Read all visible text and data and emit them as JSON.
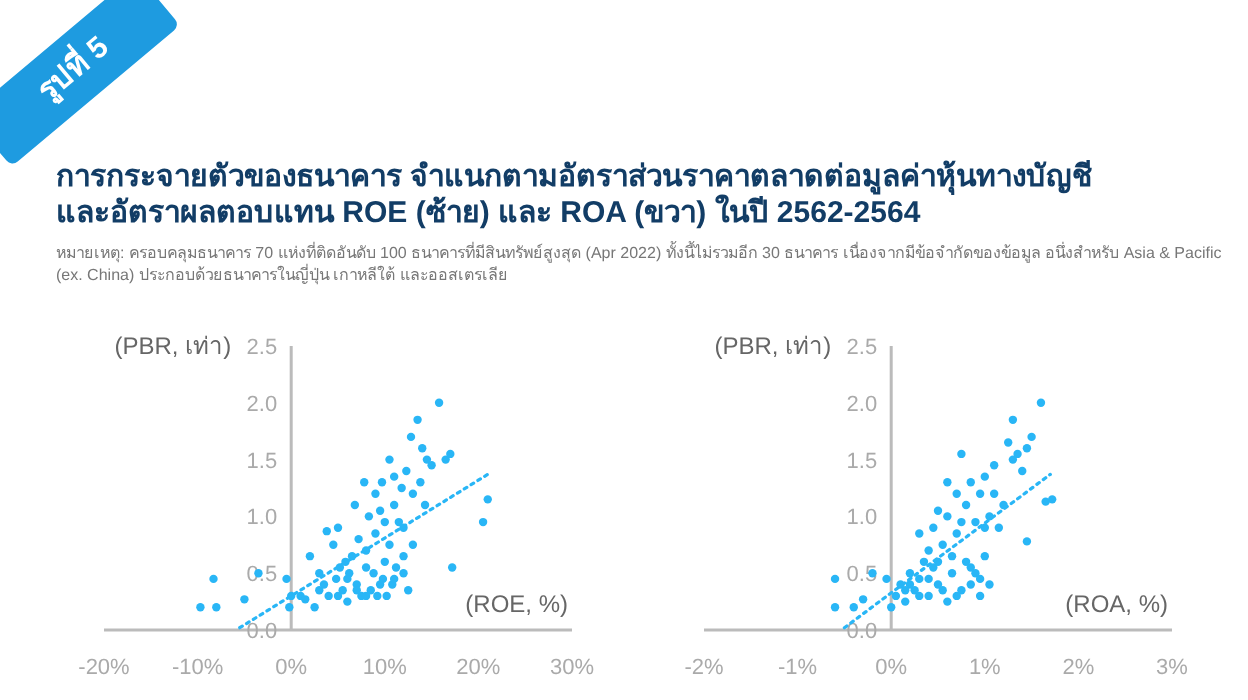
{
  "chart_data": [
    {
      "type": "scatter",
      "title": "การกระจายตัวของธนาคาร จำแนกตามอัตราส่วนราคาตลาดต่อมูลค่าหุ้นทางบัญชี และอัตราผลตอบแทน ROE (ซ้าย) และ ROA (ขวา) ในปี 2562-2564",
      "annotations": [
        "รูปที่ 5",
        "หมายเหตุ: ครอบคลุมธนาคาร 70 แห่งที่ติดอันดับ 100 ธนาคารที่มีสินทรัพย์สูงสุด (Apr 2022) ทั้งนี้ไม่รวมอีก 30 ธนาคาร เนื่องจากมีข้อจำกัดของข้อมูล อนึ่งสำหรับ Asia & Pacific (ex. China) ประกอบด้วยธนาคารในญี่ปุ่น เกาหลีใต้ และออสเตรเลีย"
      ],
      "xlabel": "(ROE, %)",
      "ylabel": "(PBR, เท่า)",
      "xlim": [
        -20,
        30
      ],
      "ylim": [
        0,
        2.5
      ],
      "xticks": [
        {
          "value": -20,
          "label": "-20%"
        },
        {
          "value": -10,
          "label": "-10%"
        },
        {
          "value": 0,
          "label": "0%"
        },
        {
          "value": 10,
          "label": "10%"
        },
        {
          "value": 20,
          "label": "20%"
        },
        {
          "value": 30,
          "label": "30%"
        }
      ],
      "yticks": [
        {
          "value": 0,
          "label": "0.0"
        },
        {
          "value": 0.5,
          "label": "0.5"
        },
        {
          "value": 1,
          "label": "1.0"
        },
        {
          "value": 1.5,
          "label": "1.5"
        },
        {
          "value": 2,
          "label": "2.0"
        },
        {
          "value": 2.5,
          "label": "2.5"
        }
      ],
      "grid": false,
      "series": [
        {
          "type": "scatter",
          "marker": "circle",
          "color": "#29b6f6",
          "x": [
            -9.7,
            -8.3,
            -8.0,
            -5,
            -3.5,
            -0.5,
            -0.2,
            0,
            1,
            1.5,
            2,
            2.5,
            3,
            3.5,
            3.8,
            4,
            4.5,
            5,
            4.8,
            5.2,
            5.5,
            5.8,
            6,
            6.2,
            6.5,
            6.8,
            7,
            7.2,
            7.5,
            7.8,
            8,
            8,
            8.3,
            8.5,
            8.8,
            9,
            9,
            9.2,
            9.5,
            9.7,
            9.8,
            10,
            10,
            10.2,
            10.5,
            10.5,
            10.8,
            11,
            11,
            11.2,
            11.5,
            11.8,
            12,
            12,
            12.3,
            12.5,
            12.8,
            13,
            13,
            13.5,
            13.8,
            14,
            14.3,
            14.5,
            15,
            15.8,
            16.5,
            17,
            17.2,
            20.5,
            21,
            6,
            7,
            9.5,
            11,
            8,
            5,
            3,
            12
          ],
          "values": [
            0.2,
            0.45,
            0.2,
            0.27,
            0.5,
            0.45,
            0.2,
            0.3,
            0.3,
            0.27,
            0.65,
            0.2,
            0.5,
            0.4,
            0.87,
            0.3,
            0.75,
            0.9,
            0.45,
            0.55,
            0.35,
            0.6,
            0.25,
            0.5,
            0.65,
            1.1,
            0.4,
            0.8,
            0.3,
            1.3,
            0.55,
            0.7,
            1.0,
            0.35,
            0.5,
            1.2,
            0.85,
            0.3,
            1.05,
            1.3,
            0.45,
            0.95,
            0.6,
            0.3,
            1.5,
            0.75,
            0.4,
            1.35,
            1.1,
            0.55,
            0.95,
            1.25,
            0.5,
            0.65,
            1.4,
            0.35,
            1.7,
            1.2,
            0.75,
            1.85,
            1.3,
            1.6,
            1.1,
            1.5,
            1.45,
            2.0,
            1.5,
            1.55,
            0.55,
            0.95,
            1.15,
            0.45,
            0.35,
            0.4,
            0.45,
            0.3,
            0.3,
            0.35,
            0.9
          ]
        },
        {
          "type": "line",
          "color": "#29b6f6",
          "line_style": "dotted",
          "x": [
            -5.5,
            21
          ],
          "values": [
            0.02,
            1.37
          ]
        }
      ]
    },
    {
      "type": "scatter",
      "xlabel": "(ROA, %)",
      "ylabel": "(PBR, เท่า)",
      "xlim": [
        -2,
        3
      ],
      "ylim": [
        0,
        2.5
      ],
      "xticks": [
        {
          "value": -2,
          "label": "-2%"
        },
        {
          "value": -1,
          "label": "-1%"
        },
        {
          "value": 0,
          "label": "0%"
        },
        {
          "value": 1,
          "label": "1%"
        },
        {
          "value": 2,
          "label": "2%"
        },
        {
          "value": 3,
          "label": "3%"
        }
      ],
      "yticks": [
        {
          "value": 0,
          "label": "0.0"
        },
        {
          "value": 0.5,
          "label": "0.5"
        },
        {
          "value": 1,
          "label": "1.0"
        },
        {
          "value": 1.5,
          "label": "1.5"
        },
        {
          "value": 2,
          "label": "2.0"
        },
        {
          "value": 2.5,
          "label": "2.5"
        }
      ],
      "grid": false,
      "series": [
        {
          "type": "scatter",
          "marker": "circle",
          "color": "#29b6f6",
          "x": [
            -0.6,
            -0.6,
            -0.4,
            -0.3,
            -0.2,
            -0.05,
            0,
            0.05,
            0.1,
            0.15,
            0.2,
            0.25,
            0.3,
            0.3,
            0.35,
            0.4,
            0.4,
            0.45,
            0.5,
            0.5,
            0.55,
            0.6,
            0.6,
            0.6,
            0.65,
            0.7,
            0.7,
            0.75,
            0.75,
            0.8,
            0.8,
            0.85,
            0.85,
            0.9,
            0.9,
            0.95,
            0.95,
            1.0,
            1.0,
            1.05,
            1.05,
            1.1,
            1.1,
            1.15,
            1.2,
            1.25,
            1.3,
            1.3,
            1.35,
            1.4,
            1.45,
            1.5,
            1.45,
            1.6,
            1.65,
            1.72,
            0.2,
            0.3,
            0.5,
            0.7,
            0.85,
            0.4,
            0.55,
            0.95,
            0.65,
            0.15,
            1.0,
            0.75,
            0.45
          ],
          "values": [
            0.45,
            0.2,
            0.2,
            0.27,
            0.5,
            0.45,
            0.2,
            0.3,
            0.4,
            0.25,
            0.5,
            0.35,
            0.85,
            0.45,
            0.6,
            0.3,
            0.7,
            0.55,
            1.05,
            0.4,
            0.75,
            1.0,
            0.25,
            1.3,
            0.5,
            1.2,
            0.85,
            0.35,
            1.55,
            0.6,
            1.1,
            1.3,
            0.4,
            0.95,
            0.5,
            1.2,
            0.3,
            1.35,
            0.65,
            1.0,
            0.4,
            1.45,
            1.2,
            0.9,
            1.1,
            1.65,
            1.85,
            1.5,
            1.55,
            1.4,
            1.6,
            1.7,
            0.78,
            2.0,
            1.13,
            1.15,
            0.4,
            0.3,
            0.6,
            0.3,
            0.55,
            0.45,
            0.35,
            0.45,
            0.65,
            0.35,
            0.9,
            0.95,
            0.9
          ]
        },
        {
          "type": "line",
          "color": "#29b6f6",
          "line_style": "dotted",
          "x": [
            -0.5,
            1.7
          ],
          "values": [
            0.02,
            1.37
          ]
        }
      ]
    }
  ]
}
